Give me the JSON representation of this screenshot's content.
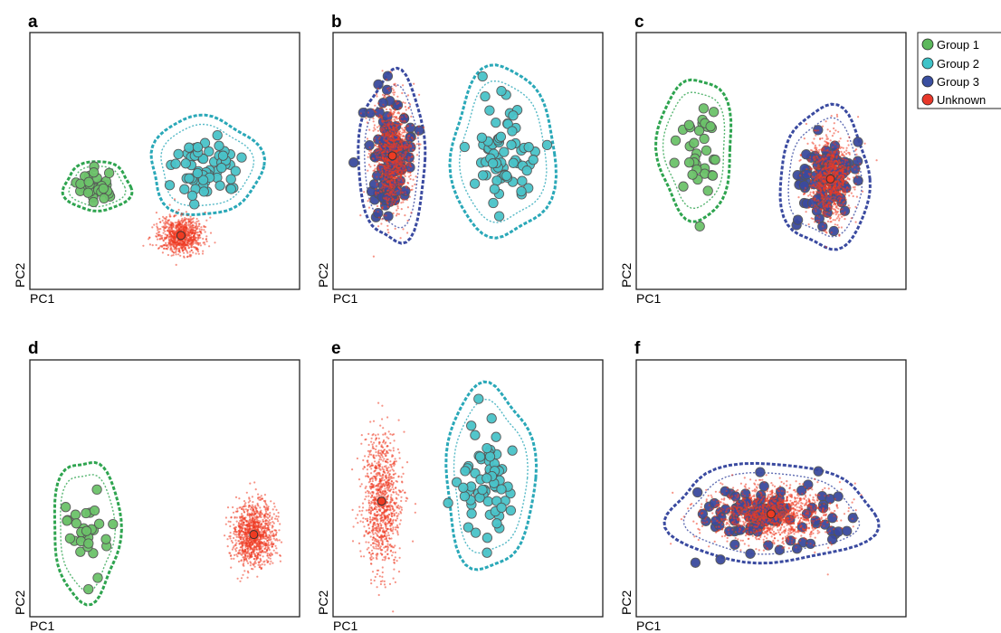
{
  "legend": {
    "items": [
      {
        "label": "Group 1",
        "color": "#5cb85c"
      },
      {
        "label": "Group 2",
        "color": "#3ec3c8"
      },
      {
        "label": "Group 3",
        "color": "#3a4fa0"
      },
      {
        "label": "Unknown",
        "color": "#e8382a"
      }
    ]
  },
  "colors": {
    "group1_fill": "#6cc26a",
    "group1_contour": "#2ea44f",
    "group2_fill": "#49c3c9",
    "group2_contour": "#2aa8b8",
    "group3_fill": "#3b4a9e",
    "group3_contour": "#3a4aa0",
    "unknown_cloud": "#ee3b22",
    "frame": "#222222"
  },
  "chart_data": [
    {
      "panel": "a",
      "type": "scatter",
      "xlabel": "PC1",
      "ylabel": "PC2",
      "groups": [
        {
          "name": "Group 1",
          "center": [
            0.25,
            0.6
          ],
          "spread": [
            0.045,
            0.035
          ],
          "n": 35
        },
        {
          "name": "Group 2",
          "center": [
            0.65,
            0.52
          ],
          "spread": [
            0.075,
            0.07
          ],
          "n": 60
        },
        {
          "name": "Unknown",
          "center": [
            0.56,
            0.79
          ],
          "spread": [
            0.04,
            0.035
          ],
          "n": 900,
          "cloud": true
        }
      ],
      "unknown_marker": [
        0.56,
        0.79
      ]
    },
    {
      "panel": "b",
      "type": "scatter",
      "xlabel": "PC1",
      "ylabel": "PC2",
      "groups": [
        {
          "name": "Group 3",
          "center": [
            0.22,
            0.49
          ],
          "spread": [
            0.045,
            0.12
          ],
          "n": 110
        },
        {
          "name": "Group 2",
          "center": [
            0.63,
            0.47
          ],
          "spread": [
            0.07,
            0.12
          ],
          "n": 70
        },
        {
          "name": "Unknown",
          "center": [
            0.22,
            0.48
          ],
          "spread": [
            0.035,
            0.11
          ],
          "n": 1100,
          "cloud": true
        }
      ],
      "unknown_marker": [
        0.22,
        0.48
      ]
    },
    {
      "panel": "c",
      "type": "scatter",
      "xlabel": "PC1",
      "ylabel": "PC2",
      "groups": [
        {
          "name": "Group 1",
          "center": [
            0.22,
            0.45
          ],
          "spread": [
            0.05,
            0.1
          ],
          "n": 35
        },
        {
          "name": "Group 3",
          "center": [
            0.7,
            0.57
          ],
          "spread": [
            0.06,
            0.1
          ],
          "n": 90
        },
        {
          "name": "Unknown",
          "center": [
            0.72,
            0.57
          ],
          "spread": [
            0.04,
            0.08
          ],
          "n": 1000,
          "cloud": true
        }
      ],
      "unknown_marker": [
        0.72,
        0.57
      ]
    },
    {
      "panel": "d",
      "type": "scatter",
      "xlabel": "PC1",
      "ylabel": "PC2",
      "groups": [
        {
          "name": "Group 1",
          "center": [
            0.21,
            0.66
          ],
          "spread": [
            0.045,
            0.1
          ],
          "n": 30
        },
        {
          "name": "Unknown",
          "center": [
            0.83,
            0.68
          ],
          "spread": [
            0.04,
            0.06
          ],
          "n": 1100,
          "cloud": true
        }
      ],
      "unknown_marker": [
        0.83,
        0.68
      ]
    },
    {
      "panel": "e",
      "type": "scatter",
      "xlabel": "PC1",
      "ylabel": "PC2",
      "groups": [
        {
          "name": "Unknown",
          "center": [
            0.18,
            0.55
          ],
          "spread": [
            0.035,
            0.13
          ],
          "n": 1000,
          "cloud": true
        },
        {
          "name": "Group 2",
          "center": [
            0.58,
            0.46
          ],
          "spread": [
            0.06,
            0.13
          ],
          "n": 70
        }
      ],
      "unknown_marker": [
        0.18,
        0.55
      ]
    },
    {
      "panel": "f",
      "type": "scatter",
      "xlabel": "PC1",
      "ylabel": "PC2",
      "groups": [
        {
          "name": "Group 3",
          "center": [
            0.5,
            0.6
          ],
          "spread": [
            0.14,
            0.07
          ],
          "n": 110
        },
        {
          "name": "Unknown",
          "center": [
            0.5,
            0.6
          ],
          "spread": [
            0.11,
            0.055
          ],
          "n": 1400,
          "cloud": true
        }
      ],
      "unknown_marker": [
        0.5,
        0.6
      ]
    }
  ]
}
